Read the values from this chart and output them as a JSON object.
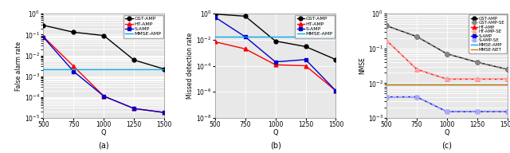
{
  "Q": [
    500,
    750,
    1000,
    1250,
    1500
  ],
  "fa_GST_AMP": [
    0.28,
    0.13,
    0.09,
    0.006,
    0.0022
  ],
  "fa_HT_AMP": [
    0.08,
    0.003,
    0.00011,
    2.8e-05,
    1.8e-05
  ],
  "fa_S_AMP": [
    0.075,
    0.0017,
    0.00011,
    2.8e-05,
    1.8e-05
  ],
  "fa_MMSE_AMP_val": 0.0022,
  "md_GST_AMP": [
    0.95,
    0.65,
    0.008,
    0.003,
    0.0003
  ],
  "md_HT_AMP": [
    0.007,
    0.002,
    0.00012,
    0.0001,
    1.2e-06
  ],
  "md_S_AMP": [
    0.55,
    0.017,
    0.0002,
    0.0003,
    1.2e-06
  ],
  "md_MMSE_AMP_val": 0.018,
  "nmse_GST_AMP": [
    0.45,
    0.22,
    0.07,
    0.04,
    0.025
  ],
  "nmse_GST_AMP_SE": [
    0.45,
    0.22,
    0.07,
    0.04,
    0.025
  ],
  "nmse_HT_AMP": [
    0.17,
    0.025,
    0.013,
    0.013,
    0.013
  ],
  "nmse_HT_AMP_SE": [
    0.17,
    0.025,
    0.013,
    0.013,
    0.013
  ],
  "nmse_S_AMP": [
    0.004,
    0.004,
    0.0015,
    0.0015,
    0.0015
  ],
  "nmse_S_AMP_SE": [
    0.004,
    0.004,
    0.0015,
    0.0015,
    0.0015
  ],
  "nmse_MMSE_AMP_val": 0.009,
  "nmse_MMSE_NET_val": 0.009,
  "color_GST": "#000000",
  "color_HT": "#ff0000",
  "color_S": "#0000cc",
  "color_MMSE_AMP": "#00aaee",
  "color_MMSE_NET": "#dd7700",
  "color_GST_SE": "#888888",
  "color_HT_SE": "#ffaaaa",
  "color_S_SE": "#aaaaff",
  "bg_color": "#e8e8e8",
  "grid_color": "#ffffff",
  "fa_ylabel": "False alarm rate",
  "md_ylabel": "Missed detection rate",
  "nmse_ylabel": "NMSE",
  "xlabel": "Q",
  "label_a": "(a)",
  "label_b": "(b)",
  "label_c": "(c)"
}
